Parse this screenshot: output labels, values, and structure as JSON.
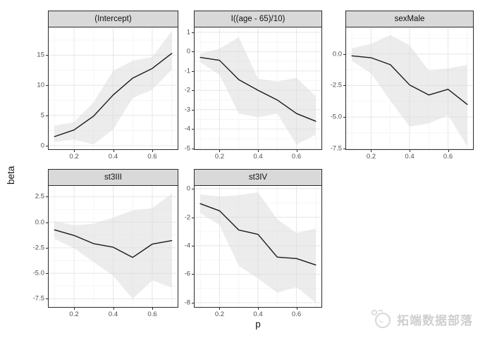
{
  "figure": {
    "watermark": "拓端数据部落"
  },
  "colors": {
    "strip_bg": "#d9d9d9",
    "strip_border": "#2b2b2b",
    "panel_border": "#2b2b2b",
    "grid_major": "#e6e6e6",
    "grid_minor": "#f3f3f3",
    "ribbon": "#d9d9d9",
    "ribbon_opacity": 0.5,
    "line": "#1a1a1a",
    "tick_text": "#4d4d4d",
    "watermark_text": "#cfcfcf"
  },
  "chart_data": {
    "type": "line",
    "layout": "facet_wrap, 2 rows x 3 cols, free y scales, ribbon = confidence band",
    "xlabel": "p",
    "ylabel": "beta",
    "x": [
      0.1,
      0.2,
      0.3,
      0.4,
      0.5,
      0.6,
      0.7
    ],
    "x_range": [
      0.07,
      0.73
    ],
    "x_ticks": {
      "values": [
        0.2,
        0.4,
        0.6
      ],
      "labels": [
        "0.2",
        "0.4",
        "0.6"
      ]
    },
    "x_minor": [
      0.1,
      0.3,
      0.5,
      0.7
    ],
    "grid": "major and minor, light gray on white (theme_bw)",
    "facets": [
      {
        "title": "(Intercept)",
        "ylim": [
          -0.6,
          19.6
        ],
        "yticks": {
          "values": [
            0,
            5,
            10,
            15
          ],
          "labels": [
            "0",
            "5",
            "10",
            "15"
          ]
        },
        "line": [
          1.5,
          2.6,
          4.9,
          8.4,
          11.2,
          12.8,
          15.3
        ],
        "upper": [
          3.3,
          3.9,
          7.2,
          12.4,
          14.1,
          14.7,
          19.0
        ],
        "lower": [
          0.6,
          1.0,
          0.2,
          2.7,
          7.9,
          9.3,
          12.6
        ]
      },
      {
        "title": "I((age - 65)/10)",
        "ylim": [
          -5.05,
          1.25
        ],
        "yticks": {
          "values": [
            -5,
            -4,
            -3,
            -2,
            -1,
            0,
            1
          ],
          "labels": [
            "-5",
            "-4",
            "-3",
            "-2",
            "-1",
            "0",
            "1"
          ]
        },
        "line": [
          -0.3,
          -0.45,
          -1.45,
          -2.0,
          -2.5,
          -3.2,
          -3.6
        ],
        "upper": [
          -0.1,
          0.15,
          0.75,
          -1.4,
          -1.55,
          -1.35,
          -2.3
        ],
        "lower": [
          -0.55,
          -1.2,
          -3.2,
          -3.4,
          -3.2,
          -4.8,
          -4.3
        ]
      },
      {
        "title": "sexMale",
        "ylim": [
          -7.55,
          2.1
        ],
        "yticks": {
          "values": [
            -7.5,
            -5,
            -2.5,
            0
          ],
          "labels": [
            "-7.5",
            "-5.0",
            "-2.5",
            "0.0"
          ]
        },
        "line": [
          -0.15,
          -0.3,
          -0.85,
          -2.45,
          -3.25,
          -2.8,
          -4.0
        ],
        "upper": [
          0.45,
          0.8,
          1.5,
          0.7,
          -1.3,
          -1.15,
          -0.85
        ],
        "lower": [
          -0.55,
          -1.55,
          -3.7,
          -5.75,
          -5.5,
          -4.85,
          -7.3
        ]
      },
      {
        "title": "st3III",
        "ylim": [
          -8.3,
          3.55
        ],
        "yticks": {
          "values": [
            -7.5,
            -5,
            -2.5,
            0,
            2.5
          ],
          "labels": [
            "-7.5",
            "-5.0",
            "-2.5",
            "0.0",
            "2.5"
          ]
        },
        "line": [
          -0.75,
          -1.3,
          -2.1,
          -2.45,
          -3.45,
          -2.15,
          -1.8
        ],
        "upper": [
          0.1,
          -0.3,
          -0.15,
          0.45,
          1.15,
          1.35,
          2.8
        ],
        "lower": [
          -1.65,
          -2.55,
          -3.9,
          -5.25,
          -7.5,
          -5.7,
          -6.4
        ]
      },
      {
        "title": "st3IV",
        "ylim": [
          -8.3,
          0.2
        ],
        "yticks": {
          "values": [
            -8,
            -6,
            -4,
            -2,
            0
          ],
          "labels": [
            "-8",
            "-6",
            "-4",
            "-2",
            "0"
          ]
        },
        "line": [
          -1.05,
          -1.55,
          -2.9,
          -3.2,
          -4.8,
          -4.9,
          -5.35
        ],
        "upper": [
          -0.4,
          -0.55,
          -0.45,
          -0.25,
          -2.15,
          -3.1,
          -2.8
        ],
        "lower": [
          -1.7,
          -2.55,
          -5.4,
          -6.3,
          -7.3,
          -6.9,
          -8.0
        ]
      }
    ]
  }
}
